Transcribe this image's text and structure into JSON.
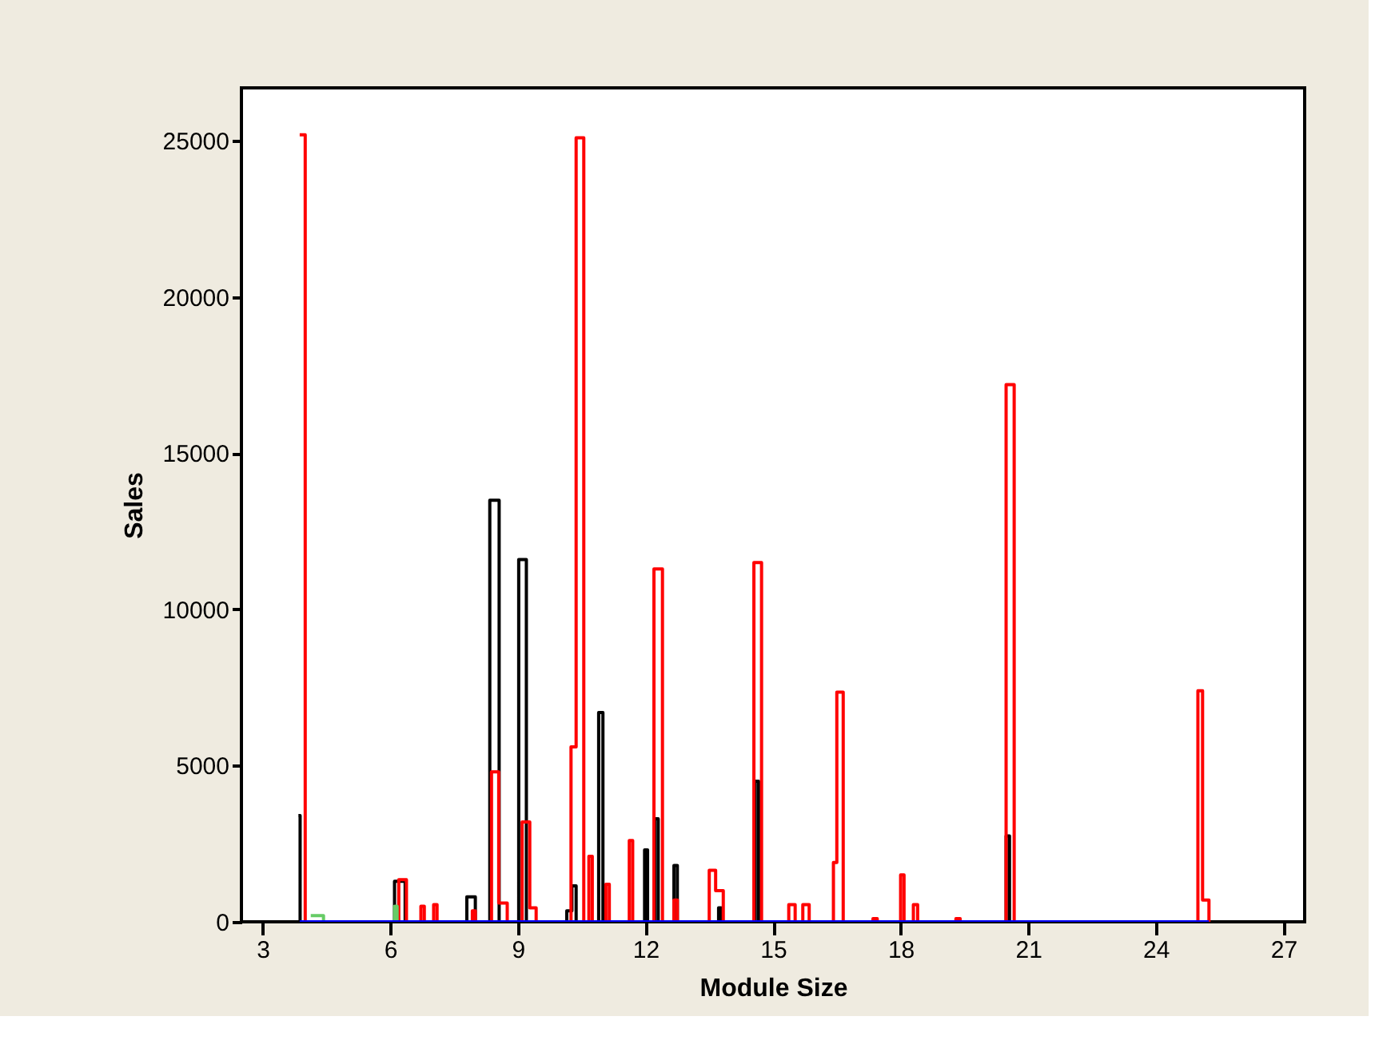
{
  "chart_data": {
    "type": "step",
    "xlabel": "Module Size",
    "ylabel": "Sales",
    "xlim": [
      2.5,
      27.5
    ],
    "ylim": [
      0,
      26700
    ],
    "xticks": [
      3,
      6,
      9,
      12,
      15,
      18,
      21,
      24,
      27
    ],
    "yticks": [
      0,
      5000,
      10000,
      15000,
      20000,
      25000
    ],
    "grid": false,
    "marker": "none",
    "line_style": "solid",
    "series": [
      {
        "color": "#000000",
        "x": [
          3.84,
          3.88,
          6.1,
          6.35,
          7.8,
          8.0,
          8.34,
          8.56,
          9.02,
          9.2,
          10.15,
          10.27,
          10.37,
          10.9,
          11.0,
          11.98,
          12.05,
          12.22,
          12.3,
          12.67,
          12.75,
          13.72,
          13.78,
          14.58,
          14.66,
          20.48,
          20.56
        ],
        "values": [
          3400,
          0,
          1300,
          0,
          800,
          0,
          13500,
          0,
          11600,
          0,
          350,
          1150,
          0,
          6700,
          0,
          2300,
          0,
          3300,
          0,
          1800,
          0,
          450,
          0,
          4500,
          0,
          2750,
          0
        ]
      },
      {
        "color": "#ff0000",
        "x": [
          3.87,
          4.0,
          6.2,
          6.38,
          6.72,
          6.8,
          7.02,
          7.1,
          7.93,
          8.0,
          8.38,
          8.55,
          8.75,
          9.1,
          9.28,
          9.43,
          10.25,
          10.37,
          10.55,
          10.67,
          10.75,
          11.07,
          11.15,
          11.62,
          11.7,
          12.2,
          12.4,
          12.67,
          12.75,
          13.5,
          13.65,
          13.83,
          14.55,
          14.73,
          15.37,
          15.52,
          15.7,
          15.85,
          16.42,
          16.5,
          16.65,
          17.35,
          17.45,
          18.0,
          18.08,
          18.3,
          18.4,
          19.3,
          19.4,
          20.48,
          20.67,
          24.99,
          25.1,
          25.25
        ],
        "values": [
          25200,
          0,
          1350,
          0,
          500,
          0,
          550,
          0,
          350,
          0,
          4800,
          600,
          0,
          3200,
          450,
          0,
          5600,
          25100,
          0,
          2100,
          0,
          1200,
          0,
          2600,
          0,
          11300,
          0,
          700,
          0,
          1650,
          1000,
          0,
          11500,
          0,
          550,
          0,
          550,
          0,
          1900,
          7350,
          0,
          100,
          0,
          1500,
          0,
          550,
          0,
          100,
          0,
          17200,
          0,
          7400,
          700,
          0
        ]
      },
      {
        "color": "#66cc66",
        "x": [
          4.13,
          4.43,
          6.1,
          6.16
        ],
        "values": [
          200,
          0,
          500,
          0
        ]
      },
      {
        "color": "#0000ff",
        "x": [
          3.87,
          25.25
        ],
        "values": [
          0,
          0
        ]
      }
    ]
  }
}
